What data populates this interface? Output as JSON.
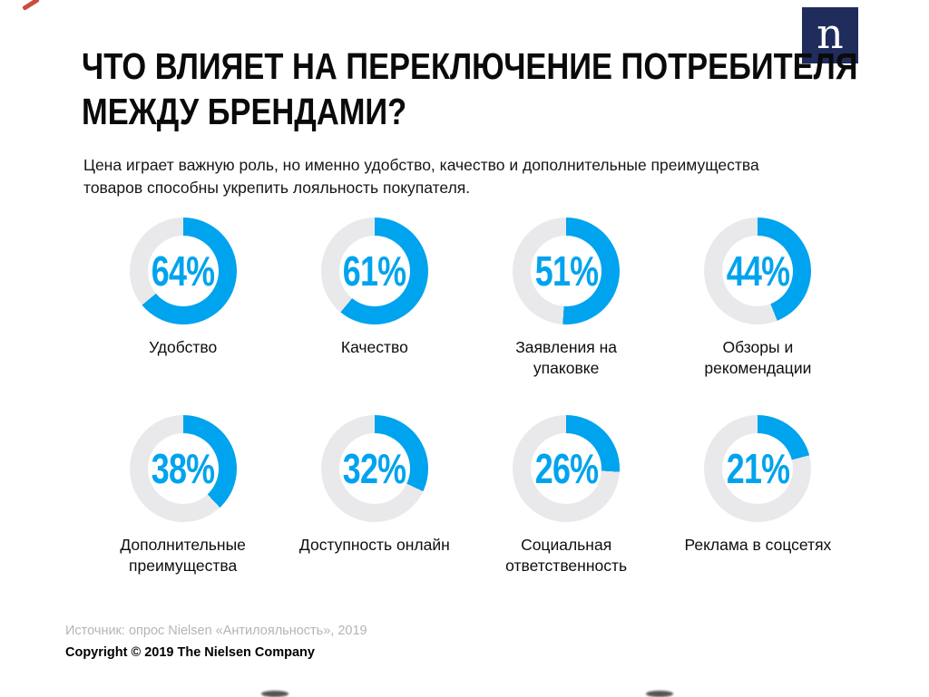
{
  "header": {
    "title_line1": "ЧТО ВЛИЯЕТ НА ПЕРЕКЛЮЧЕНИЕ ПОТРЕБИТЕЛЯ",
    "title_line2": "МЕЖДУ БРЕНДАМИ?",
    "subtitle": "Цена играет важную роль, но именно удобство, качество и дополнительные преимущества товаров способны укрепить лояльность покупателя."
  },
  "logo": {
    "letter": "n"
  },
  "footer": {
    "source": "Источник: опрос Nielsen «Антилояльность», 2019",
    "copyright": "Copyright © 2019 The Nielsen Company"
  },
  "colors": {
    "accent_blue": "#00a3ee",
    "track_gray": "#e9e9eb",
    "logo_navy": "#1f2c5c",
    "source_gray": "#b5b5b5"
  },
  "chart_data": {
    "type": "pie",
    "variant": "donut-grid",
    "title": "Что влияет на переключение потребителя между брендами?",
    "unit": "%",
    "legend_position": "none",
    "items": [
      {
        "label": "Удобство",
        "value": 64,
        "display": "64%"
      },
      {
        "label": "Качество",
        "value": 61,
        "display": "61%"
      },
      {
        "label": "Заявления на упаковке",
        "value": 51,
        "display": "51%"
      },
      {
        "label": "Обзоры и рекомендации",
        "value": 44,
        "display": "44%"
      },
      {
        "label": "Дополнительные преимущества",
        "value": 38,
        "display": "38%"
      },
      {
        "label": "Доступность онлайн",
        "value": 32,
        "display": "32%"
      },
      {
        "label": "Социальная ответственность",
        "value": 26,
        "display": "26%"
      },
      {
        "label": "Реклама в соцсетях",
        "value": 21,
        "display": "21%"
      }
    ]
  }
}
